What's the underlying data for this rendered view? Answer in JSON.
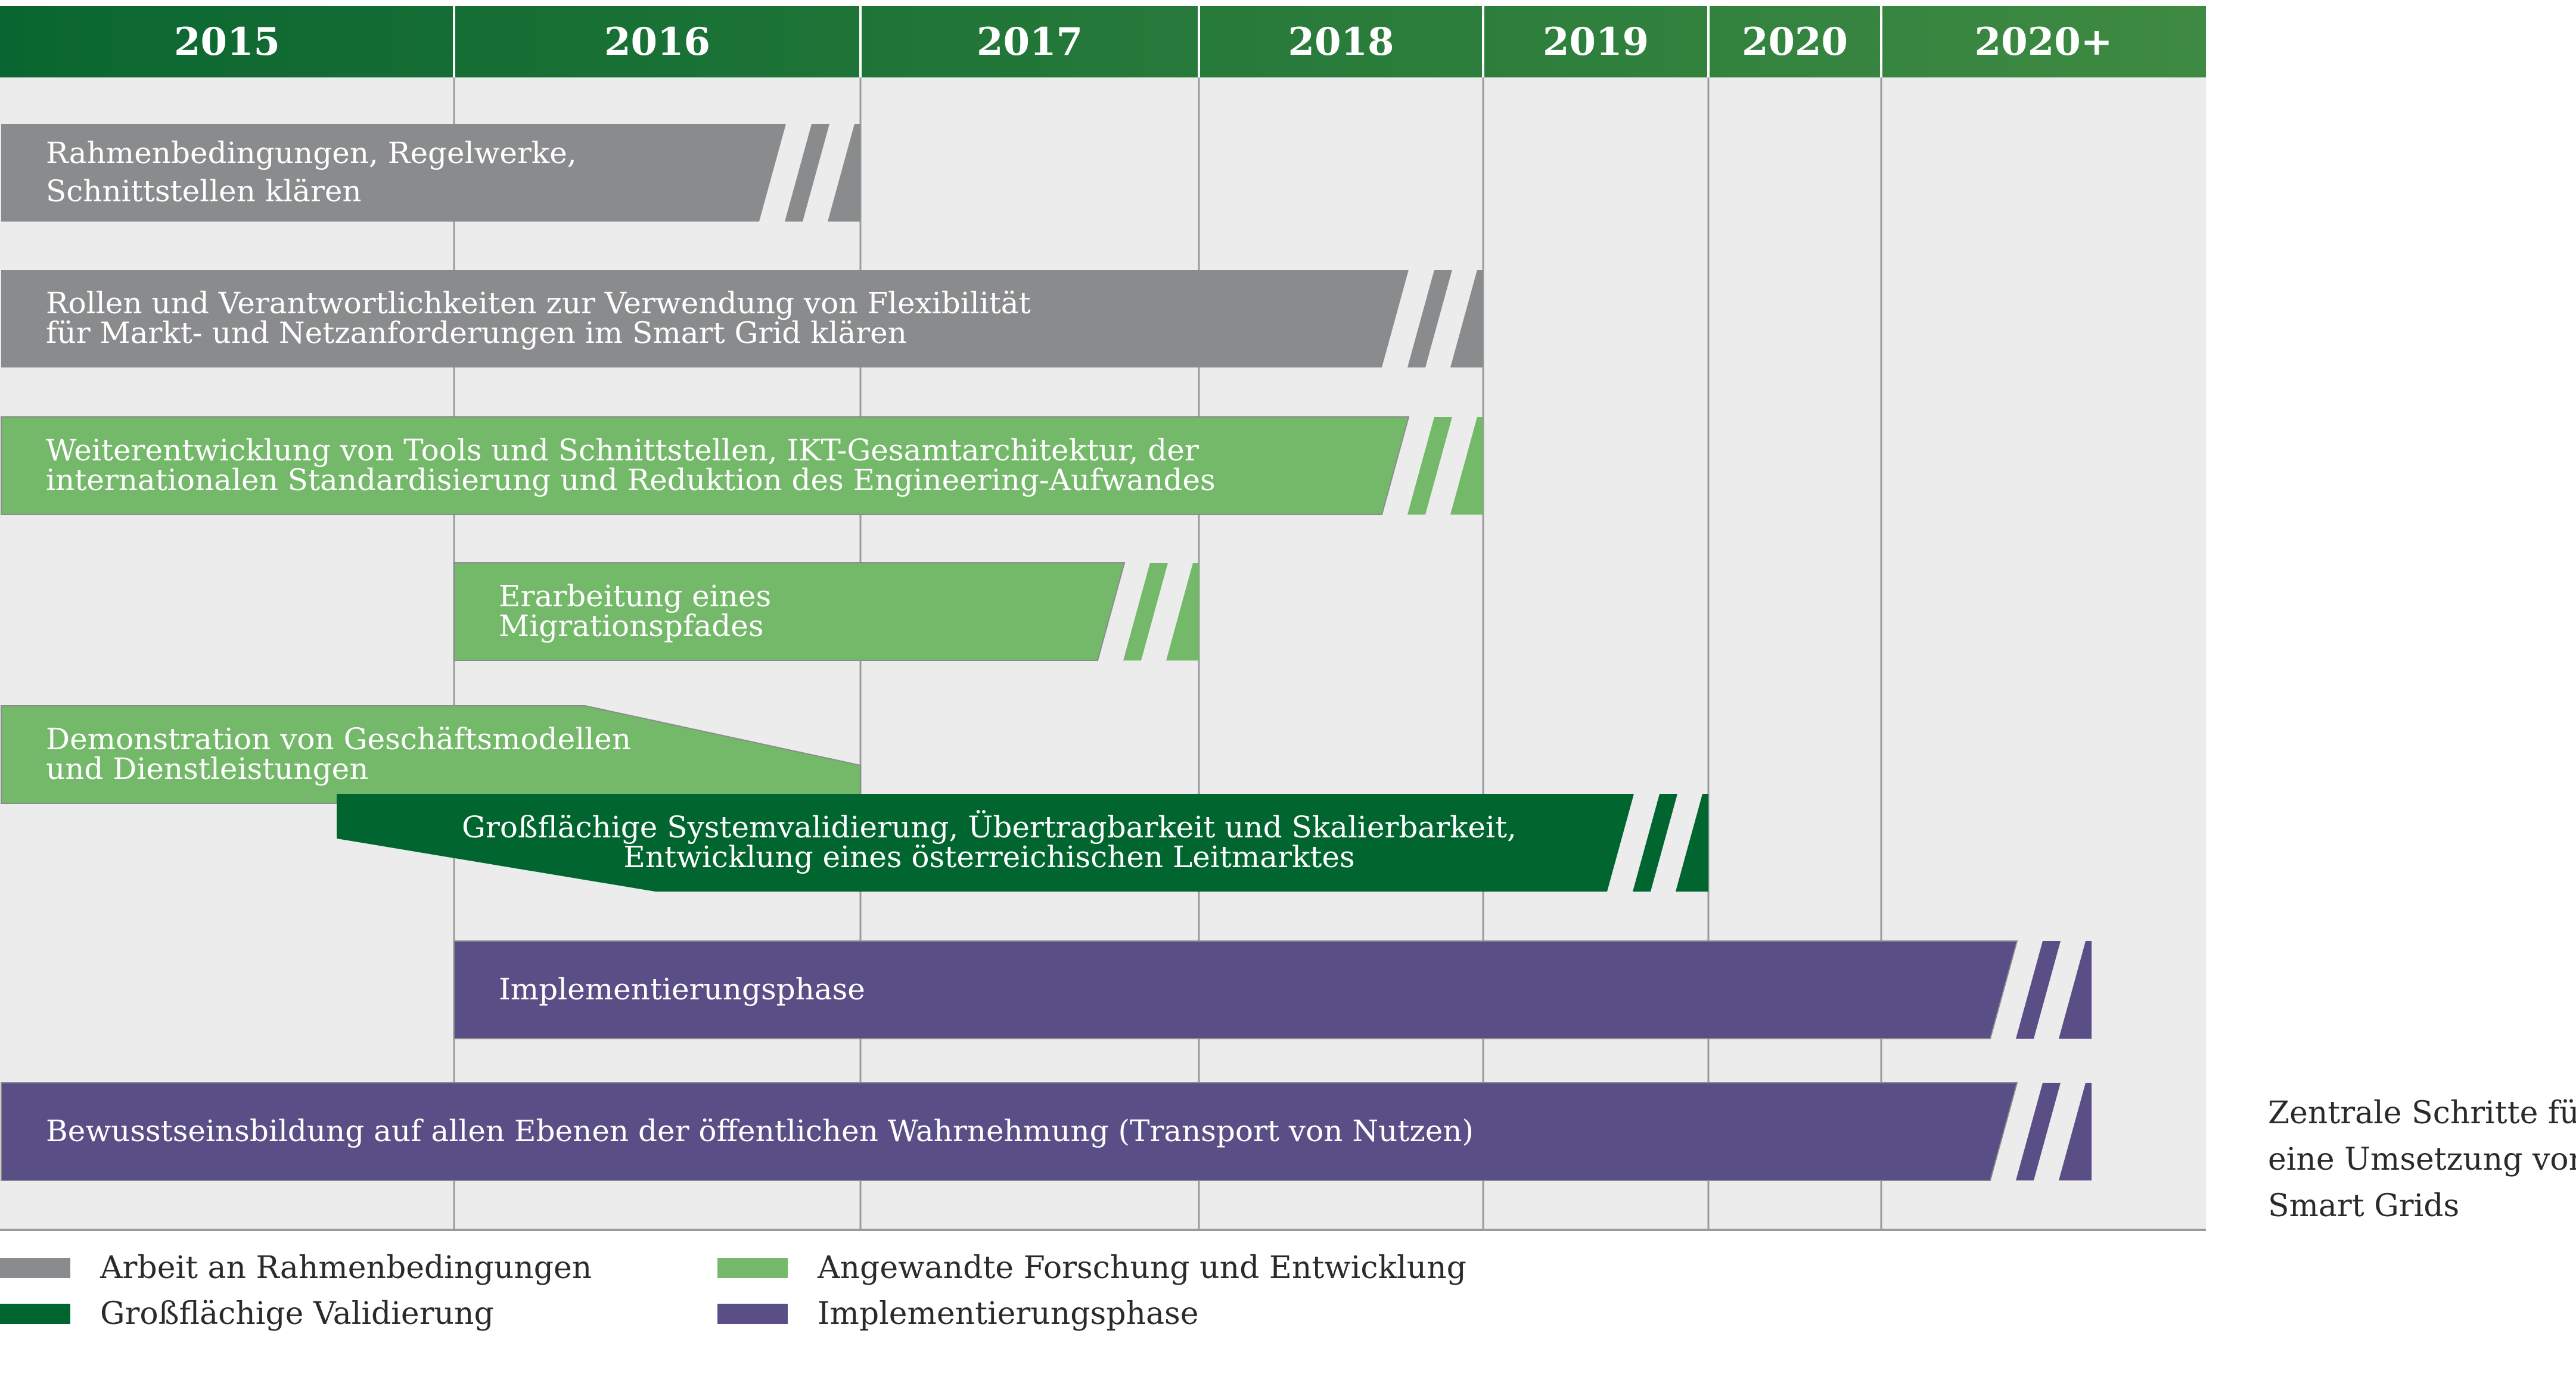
{
  "chart_data": {
    "type": "timeline",
    "years": [
      "2015",
      "2016",
      "2017",
      "2018",
      "2019",
      "2020",
      "2020+"
    ],
    "bars": [
      {
        "category": "framework",
        "start": "2015",
        "end": "2016",
        "continues": true,
        "lines": [
          "Rahmenbedingungen, Regelwerke,",
          "Schnittstellen klären"
        ]
      },
      {
        "category": "framework",
        "start": "2015",
        "end": "2018",
        "continues": true,
        "lines": [
          "Rollen und Verantwortlichkeiten zur Verwendung von Flexibilität",
          "für Markt- und Netzanforderungen im Smart Grid klären"
        ]
      },
      {
        "category": "research",
        "start": "2015",
        "end": "2018",
        "continues": true,
        "lines": [
          "Weiterentwicklung von Tools und Schnittstellen, IKT-Gesamtarchitektur, der",
          "internationalen Standardisierung und Reduktion des Engineering-Aufwandes"
        ]
      },
      {
        "category": "research",
        "start": "2016",
        "end": "2017",
        "continues": true,
        "lines": [
          "Erarbeitung eines",
          "Migrationspfades"
        ]
      },
      {
        "category": "research",
        "start": "2015",
        "end": "2016",
        "continues": false,
        "transition": true,
        "lines": [
          "Demonstration von Geschäftsmodellen",
          "und Dienstleistungen"
        ]
      },
      {
        "category": "validation",
        "start": "2015",
        "end": "2019",
        "continues": true,
        "transition": true,
        "lines": [
          "Großflächige Systemvalidierung, Übertragbarkeit und Skalierbarkeit,",
          "Entwicklung eines österreichischen Leitmarktes"
        ]
      },
      {
        "category": "implementation",
        "start": "2016",
        "end": "2020+",
        "continues": true,
        "lines": [
          "Implementierungsphase"
        ]
      },
      {
        "category": "implementation",
        "start": "2015",
        "end": "2020+",
        "continues": true,
        "lines": [
          "Bewusstseinsbildung auf allen Ebenen der öffentlichen Wahrnehmung (Transport von Nutzen)"
        ]
      }
    ],
    "legend": [
      {
        "category": "framework",
        "label": "Arbeit an Rahmenbedingungen"
      },
      {
        "category": "validation",
        "label": "Großflächige Validierung"
      },
      {
        "category": "research",
        "label": "Angewandte Forschung und Entwicklung"
      },
      {
        "category": "implementation",
        "label": "Implementierungsphase"
      }
    ],
    "colors": {
      "framework": "#8a8b8c",
      "research": "#74b86a",
      "validation": "#00652e",
      "implementation": "#594e86",
      "header_start": "#0a6630",
      "header_end": "#3e8a42",
      "background": "#ebeceb",
      "gridline": "#9a9b9c"
    }
  },
  "caption": [
    "Zentrale Schritte für",
    "eine Umsetzung von",
    "Smart Grids"
  ]
}
